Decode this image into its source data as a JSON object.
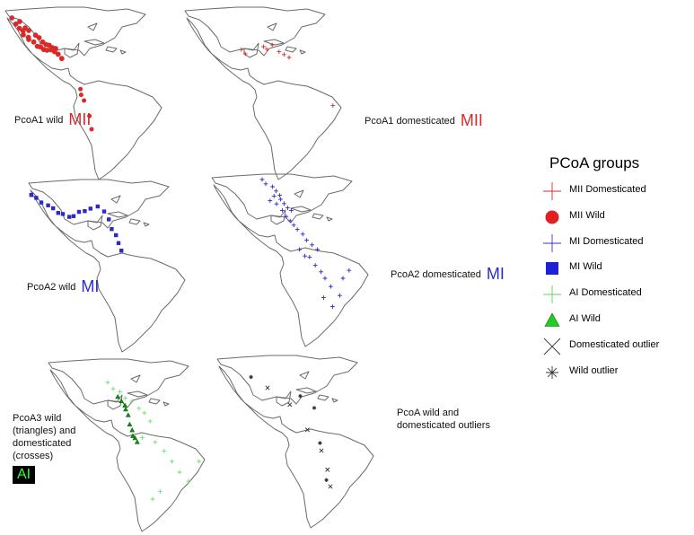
{
  "colors": {
    "mii": "#d92a2a",
    "mi": "#2b2bc9",
    "ai_domesticated": "#6fe06f",
    "ai_wild": "#138a13",
    "outlier": "#333333",
    "ai_box_bg": "#000000",
    "ai_box_text": "#33ff33"
  },
  "panels": [
    {
      "id": "p1",
      "label": "PcoA1 wild",
      "tag": "MII"
    },
    {
      "id": "p2",
      "label": "PcoA1 domesticated",
      "tag": "MII"
    },
    {
      "id": "p3",
      "label": "PcoA2 wild",
      "tag": "MI"
    },
    {
      "id": "p4",
      "label": "PcoA2 domesticated",
      "tag": "MI"
    },
    {
      "id": "p5",
      "label_lines": [
        "PcoA3 wild",
        "(triangles) and",
        "domesticated",
        "(crosses)"
      ],
      "tag": "AI"
    },
    {
      "id": "p6",
      "label_lines": [
        "PcoA wild and",
        "domesticated outliers"
      ]
    }
  ],
  "legend": {
    "title": "PCoA groups",
    "items": [
      {
        "label": "MII Domesticated",
        "symbol": "plus",
        "color": "#d92a2a"
      },
      {
        "label": "MII Wild",
        "symbol": "circle",
        "color": "#e02020"
      },
      {
        "label": "MI Domesticated",
        "symbol": "plus",
        "color": "#3535c8"
      },
      {
        "label": "MI Wild",
        "symbol": "square",
        "color": "#1f1fd6"
      },
      {
        "label": "AI Domesticated",
        "symbol": "plus",
        "color": "#5fd35f"
      },
      {
        "label": "AI Wild",
        "symbol": "triangle",
        "color": "#22cc22"
      },
      {
        "label": "Domesticated outlier",
        "symbol": "x",
        "color": "#333333"
      },
      {
        "label": "Wild outlier",
        "symbol": "asterisk",
        "color": "#333333"
      }
    ]
  }
}
